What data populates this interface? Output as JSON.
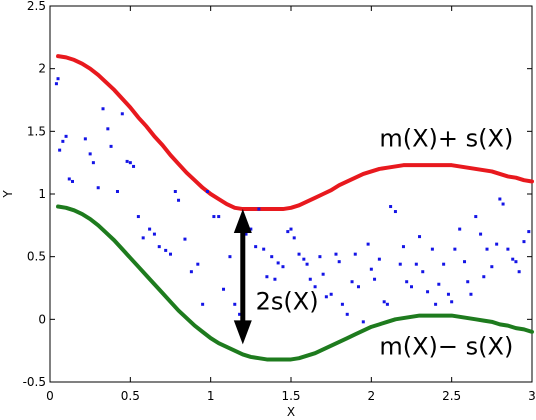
{
  "chart_data": {
    "type": "scatter",
    "xlabel": "X",
    "ylabel": "Y",
    "xlim": [
      0,
      3
    ],
    "ylim": [
      -0.5,
      2.5
    ],
    "xticks": [
      0,
      0.5,
      1,
      1.5,
      2,
      2.5,
      3
    ],
    "xtick_labels": [
      "0",
      "0.5",
      "1",
      "1.5",
      "2",
      "2.5",
      "3"
    ],
    "yticks": [
      -0.5,
      0,
      0.5,
      1,
      1.5,
      2,
      2.5
    ],
    "ytick_labels": [
      "-0.5",
      "0",
      "0.5",
      "1",
      "1.5",
      "2",
      "2.5"
    ],
    "grid": false,
    "series": [
      {
        "kind": "line",
        "color": "#e8191e",
        "x": [
          0.05,
          0.1,
          0.15,
          0.2,
          0.25,
          0.3,
          0.35,
          0.4,
          0.45,
          0.5,
          0.55,
          0.6,
          0.65,
          0.7,
          0.75,
          0.8,
          0.85,
          0.9,
          0.95,
          1.0,
          1.05,
          1.1,
          1.15,
          1.2,
          1.25,
          1.3,
          1.35,
          1.4,
          1.45,
          1.5,
          1.55,
          1.6,
          1.65,
          1.7,
          1.75,
          1.8,
          1.85,
          1.9,
          1.95,
          2.0,
          2.05,
          2.1,
          2.15,
          2.2,
          2.25,
          2.3,
          2.35,
          2.4,
          2.45,
          2.5,
          2.55,
          2.6,
          2.65,
          2.7,
          2.75,
          2.8,
          2.85,
          2.9,
          2.95,
          3.0
        ],
        "y": [
          2.1,
          2.09,
          2.07,
          2.04,
          2.0,
          1.95,
          1.89,
          1.83,
          1.76,
          1.69,
          1.61,
          1.54,
          1.46,
          1.39,
          1.31,
          1.24,
          1.17,
          1.11,
          1.05,
          1.0,
          0.96,
          0.92,
          0.89,
          0.88,
          0.88,
          0.88,
          0.88,
          0.88,
          0.88,
          0.89,
          0.91,
          0.94,
          0.97,
          1.0,
          1.03,
          1.07,
          1.1,
          1.13,
          1.16,
          1.18,
          1.2,
          1.21,
          1.22,
          1.23,
          1.23,
          1.23,
          1.23,
          1.23,
          1.23,
          1.23,
          1.22,
          1.21,
          1.2,
          1.19,
          1.18,
          1.16,
          1.14,
          1.13,
          1.11,
          1.1
        ]
      },
      {
        "kind": "line",
        "color": "#1e7b1e",
        "x": [
          0.05,
          0.1,
          0.15,
          0.2,
          0.25,
          0.3,
          0.35,
          0.4,
          0.45,
          0.5,
          0.55,
          0.6,
          0.65,
          0.7,
          0.75,
          0.8,
          0.85,
          0.9,
          0.95,
          1.0,
          1.05,
          1.1,
          1.15,
          1.2,
          1.25,
          1.3,
          1.35,
          1.4,
          1.45,
          1.5,
          1.55,
          1.6,
          1.65,
          1.7,
          1.75,
          1.8,
          1.85,
          1.9,
          1.95,
          2.0,
          2.05,
          2.1,
          2.15,
          2.2,
          2.25,
          2.3,
          2.35,
          2.4,
          2.45,
          2.5,
          2.55,
          2.6,
          2.65,
          2.7,
          2.75,
          2.8,
          2.85,
          2.9,
          2.95,
          3.0
        ],
        "y": [
          0.9,
          0.89,
          0.87,
          0.84,
          0.8,
          0.75,
          0.69,
          0.63,
          0.56,
          0.49,
          0.42,
          0.35,
          0.28,
          0.21,
          0.14,
          0.07,
          0.01,
          -0.05,
          -0.1,
          -0.15,
          -0.19,
          -0.22,
          -0.25,
          -0.28,
          -0.3,
          -0.31,
          -0.32,
          -0.32,
          -0.32,
          -0.32,
          -0.31,
          -0.29,
          -0.27,
          -0.24,
          -0.21,
          -0.18,
          -0.15,
          -0.12,
          -0.09,
          -0.06,
          -0.04,
          -0.02,
          0.0,
          0.01,
          0.02,
          0.03,
          0.03,
          0.03,
          0.03,
          0.03,
          0.02,
          0.01,
          0.0,
          -0.01,
          -0.02,
          -0.04,
          -0.05,
          -0.07,
          -0.08,
          -0.1
        ]
      },
      {
        "kind": "scatter",
        "color": "#1414e6",
        "x": [
          0.04,
          0.05,
          0.06,
          0.08,
          0.1,
          0.12,
          0.14,
          0.22,
          0.25,
          0.27,
          0.3,
          0.33,
          0.36,
          0.38,
          0.42,
          0.45,
          0.48,
          0.5,
          0.52,
          0.55,
          0.58,
          0.62,
          0.65,
          0.68,
          0.72,
          0.75,
          0.78,
          0.8,
          0.84,
          0.88,
          0.92,
          0.95,
          0.98,
          1.02,
          1.05,
          1.08,
          1.12,
          1.15,
          1.18,
          1.2,
          1.22,
          1.25,
          1.28,
          1.3,
          1.33,
          1.35,
          1.38,
          1.4,
          1.42,
          1.45,
          1.48,
          1.5,
          1.52,
          1.55,
          1.58,
          1.6,
          1.62,
          1.65,
          1.68,
          1.7,
          1.72,
          1.75,
          1.78,
          1.8,
          1.82,
          1.85,
          1.88,
          1.9,
          1.92,
          1.95,
          1.98,
          2.0,
          2.02,
          2.05,
          2.08,
          2.1,
          2.12,
          2.15,
          2.18,
          2.2,
          2.22,
          2.25,
          2.28,
          2.3,
          2.32,
          2.35,
          2.38,
          2.4,
          2.42,
          2.45,
          2.48,
          2.5,
          2.52,
          2.55,
          2.58,
          2.6,
          2.62,
          2.65,
          2.68,
          2.7,
          2.72,
          2.75,
          2.78,
          2.8,
          2.82,
          2.85,
          2.88,
          2.9,
          2.92,
          2.95,
          2.98
        ],
        "y": [
          1.88,
          1.92,
          1.35,
          1.42,
          1.46,
          1.12,
          1.1,
          1.44,
          1.32,
          1.25,
          1.05,
          1.68,
          1.52,
          1.38,
          1.02,
          1.64,
          1.26,
          1.25,
          1.22,
          0.82,
          0.65,
          0.72,
          0.68,
          0.58,
          0.55,
          0.52,
          1.02,
          0.95,
          0.64,
          0.38,
          0.44,
          0.12,
          1.02,
          0.82,
          0.82,
          0.24,
          0.5,
          0.12,
          0.04,
          0.42,
          0.68,
          0.72,
          0.58,
          0.88,
          0.56,
          0.34,
          0.5,
          0.32,
          0.45,
          0.42,
          0.7,
          0.72,
          0.65,
          0.52,
          0.48,
          0.44,
          0.32,
          0.26,
          0.5,
          0.36,
          0.18,
          0.2,
          0.52,
          0.46,
          0.12,
          0.04,
          0.3,
          0.52,
          0.26,
          -0.02,
          0.6,
          0.4,
          0.32,
          0.48,
          0.14,
          0.12,
          0.9,
          0.86,
          0.44,
          0.58,
          0.3,
          0.26,
          0.44,
          0.66,
          0.38,
          0.22,
          0.56,
          0.12,
          0.28,
          0.44,
          0.2,
          0.14,
          0.56,
          0.72,
          0.46,
          0.3,
          0.2,
          0.82,
          0.68,
          0.34,
          0.56,
          0.42,
          0.6,
          0.96,
          0.92,
          0.56,
          0.48,
          0.46,
          0.38,
          0.62,
          0.7
        ]
      }
    ],
    "annotations": [
      {
        "text": "m(X)+ s(X)",
        "x": 2.05,
        "y": 1.38
      },
      {
        "text": "m(X)− s(X)",
        "x": 2.05,
        "y": -0.28
      },
      {
        "text": "2s(X)",
        "x": 1.28,
        "y": 0.08
      }
    ],
    "arrow": {
      "x": 1.2,
      "y_top": 0.88,
      "y_bottom": -0.2
    }
  }
}
